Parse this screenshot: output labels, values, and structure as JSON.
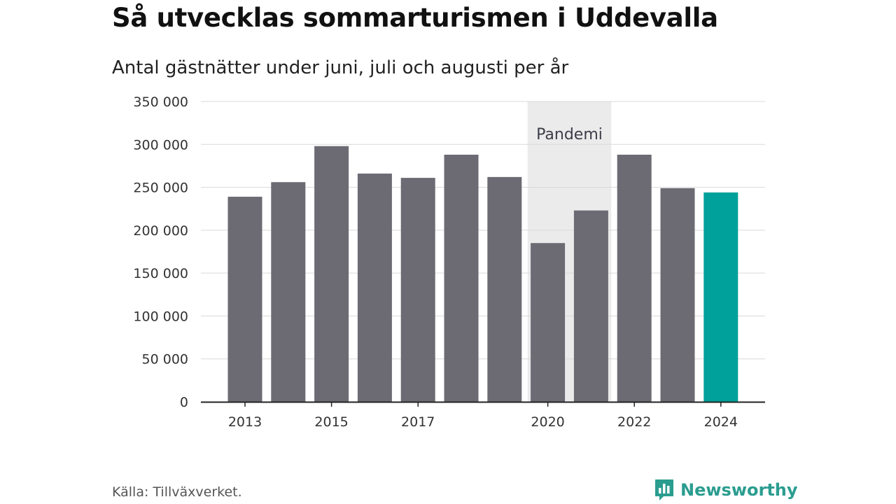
{
  "header": {
    "title": "Så utvecklas sommarturismen i Uddevalla",
    "subtitle": "Antal gästnätter under juni, juli och augusti per år"
  },
  "footer": {
    "source": "Källa: Tillväxverket.",
    "brand": "Newsworthy"
  },
  "colors": {
    "bar": "#6c6b73",
    "highlight": "#00a19a",
    "shade": "#ebebeb",
    "grid": "#d9d9d9",
    "brand": "#2a9d8f"
  },
  "chart_data": {
    "type": "bar",
    "categories": [
      "2013",
      "2014",
      "2015",
      "2016",
      "2017",
      "2018",
      "2019",
      "2020",
      "2021",
      "2022",
      "2023",
      "2024"
    ],
    "values": [
      239000,
      256000,
      298000,
      266000,
      261000,
      288000,
      262000,
      185000,
      223000,
      288000,
      249000,
      244000
    ],
    "x_tick_labels": [
      "2013",
      "2015",
      "2017",
      "2020",
      "2022",
      "2024"
    ],
    "y_ticks": [
      0,
      50000,
      100000,
      150000,
      200000,
      250000,
      300000,
      350000
    ],
    "y_tick_labels": [
      "0",
      "50 000",
      "100 000",
      "150 000",
      "200 000",
      "250 000",
      "300 000",
      "350 000"
    ],
    "ylim": [
      0,
      350000
    ],
    "highlight_category": "2024",
    "annotation": {
      "label": "Pandemi",
      "from": "2020",
      "to": "2021"
    },
    "grid": true,
    "xlabel": "",
    "ylabel": ""
  }
}
